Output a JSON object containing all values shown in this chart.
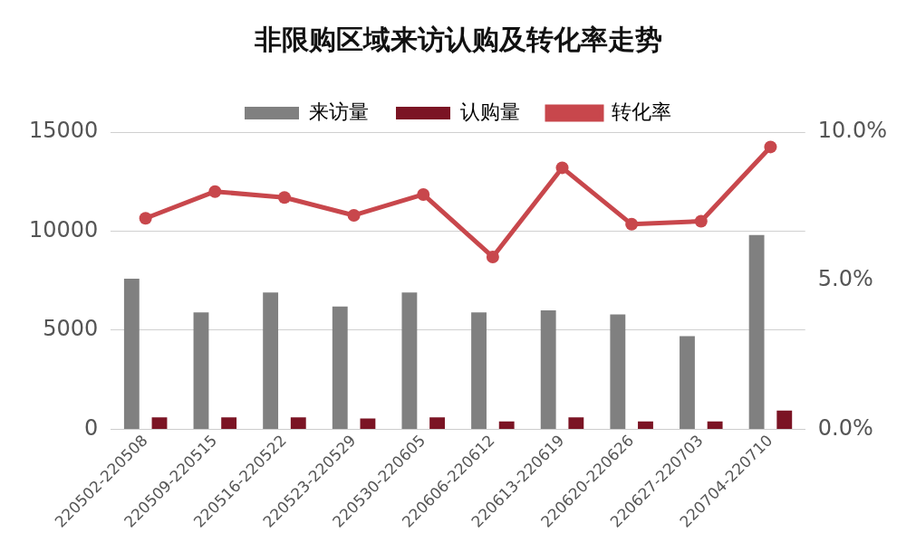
{
  "chart_data": {
    "type": "bar",
    "title": "非限购区域来访认购及转化率走势",
    "categories": [
      "220502-220508",
      "220509-220515",
      "220516-220522",
      "220523-220529",
      "220530-220605",
      "220606-220612",
      "220613-220619",
      "220620-220626",
      "220627-220703",
      "220704-220710"
    ],
    "series": [
      {
        "name": "来访量",
        "color": "#808080",
        "values": [
          7600,
          5900,
          6900,
          6200,
          6900,
          5900,
          6000,
          5800,
          4700,
          9800
        ]
      },
      {
        "name": "认购量",
        "color": "#7b1424",
        "values": [
          600,
          600,
          600,
          550,
          600,
          400,
          600,
          400,
          400,
          950
        ]
      },
      {
        "name": "转化率",
        "type": "line",
        "axis": "y2",
        "color": "#c8474c",
        "values": [
          7.1,
          8.0,
          7.8,
          7.2,
          7.9,
          5.8,
          8.8,
          6.9,
          7.0,
          9.5
        ]
      }
    ],
    "ylim": [
      0,
      15000
    ],
    "yticks": [
      0,
      5000,
      10000,
      15000
    ],
    "y2lim": [
      0,
      10
    ],
    "y2ticks": [
      {
        "value": 0,
        "label": "0.0%"
      },
      {
        "value": 5,
        "label": "5.0%"
      },
      {
        "value": 10,
        "label": "10.0%"
      }
    ],
    "grid": "y",
    "legend": "top",
    "marker": "circle"
  }
}
